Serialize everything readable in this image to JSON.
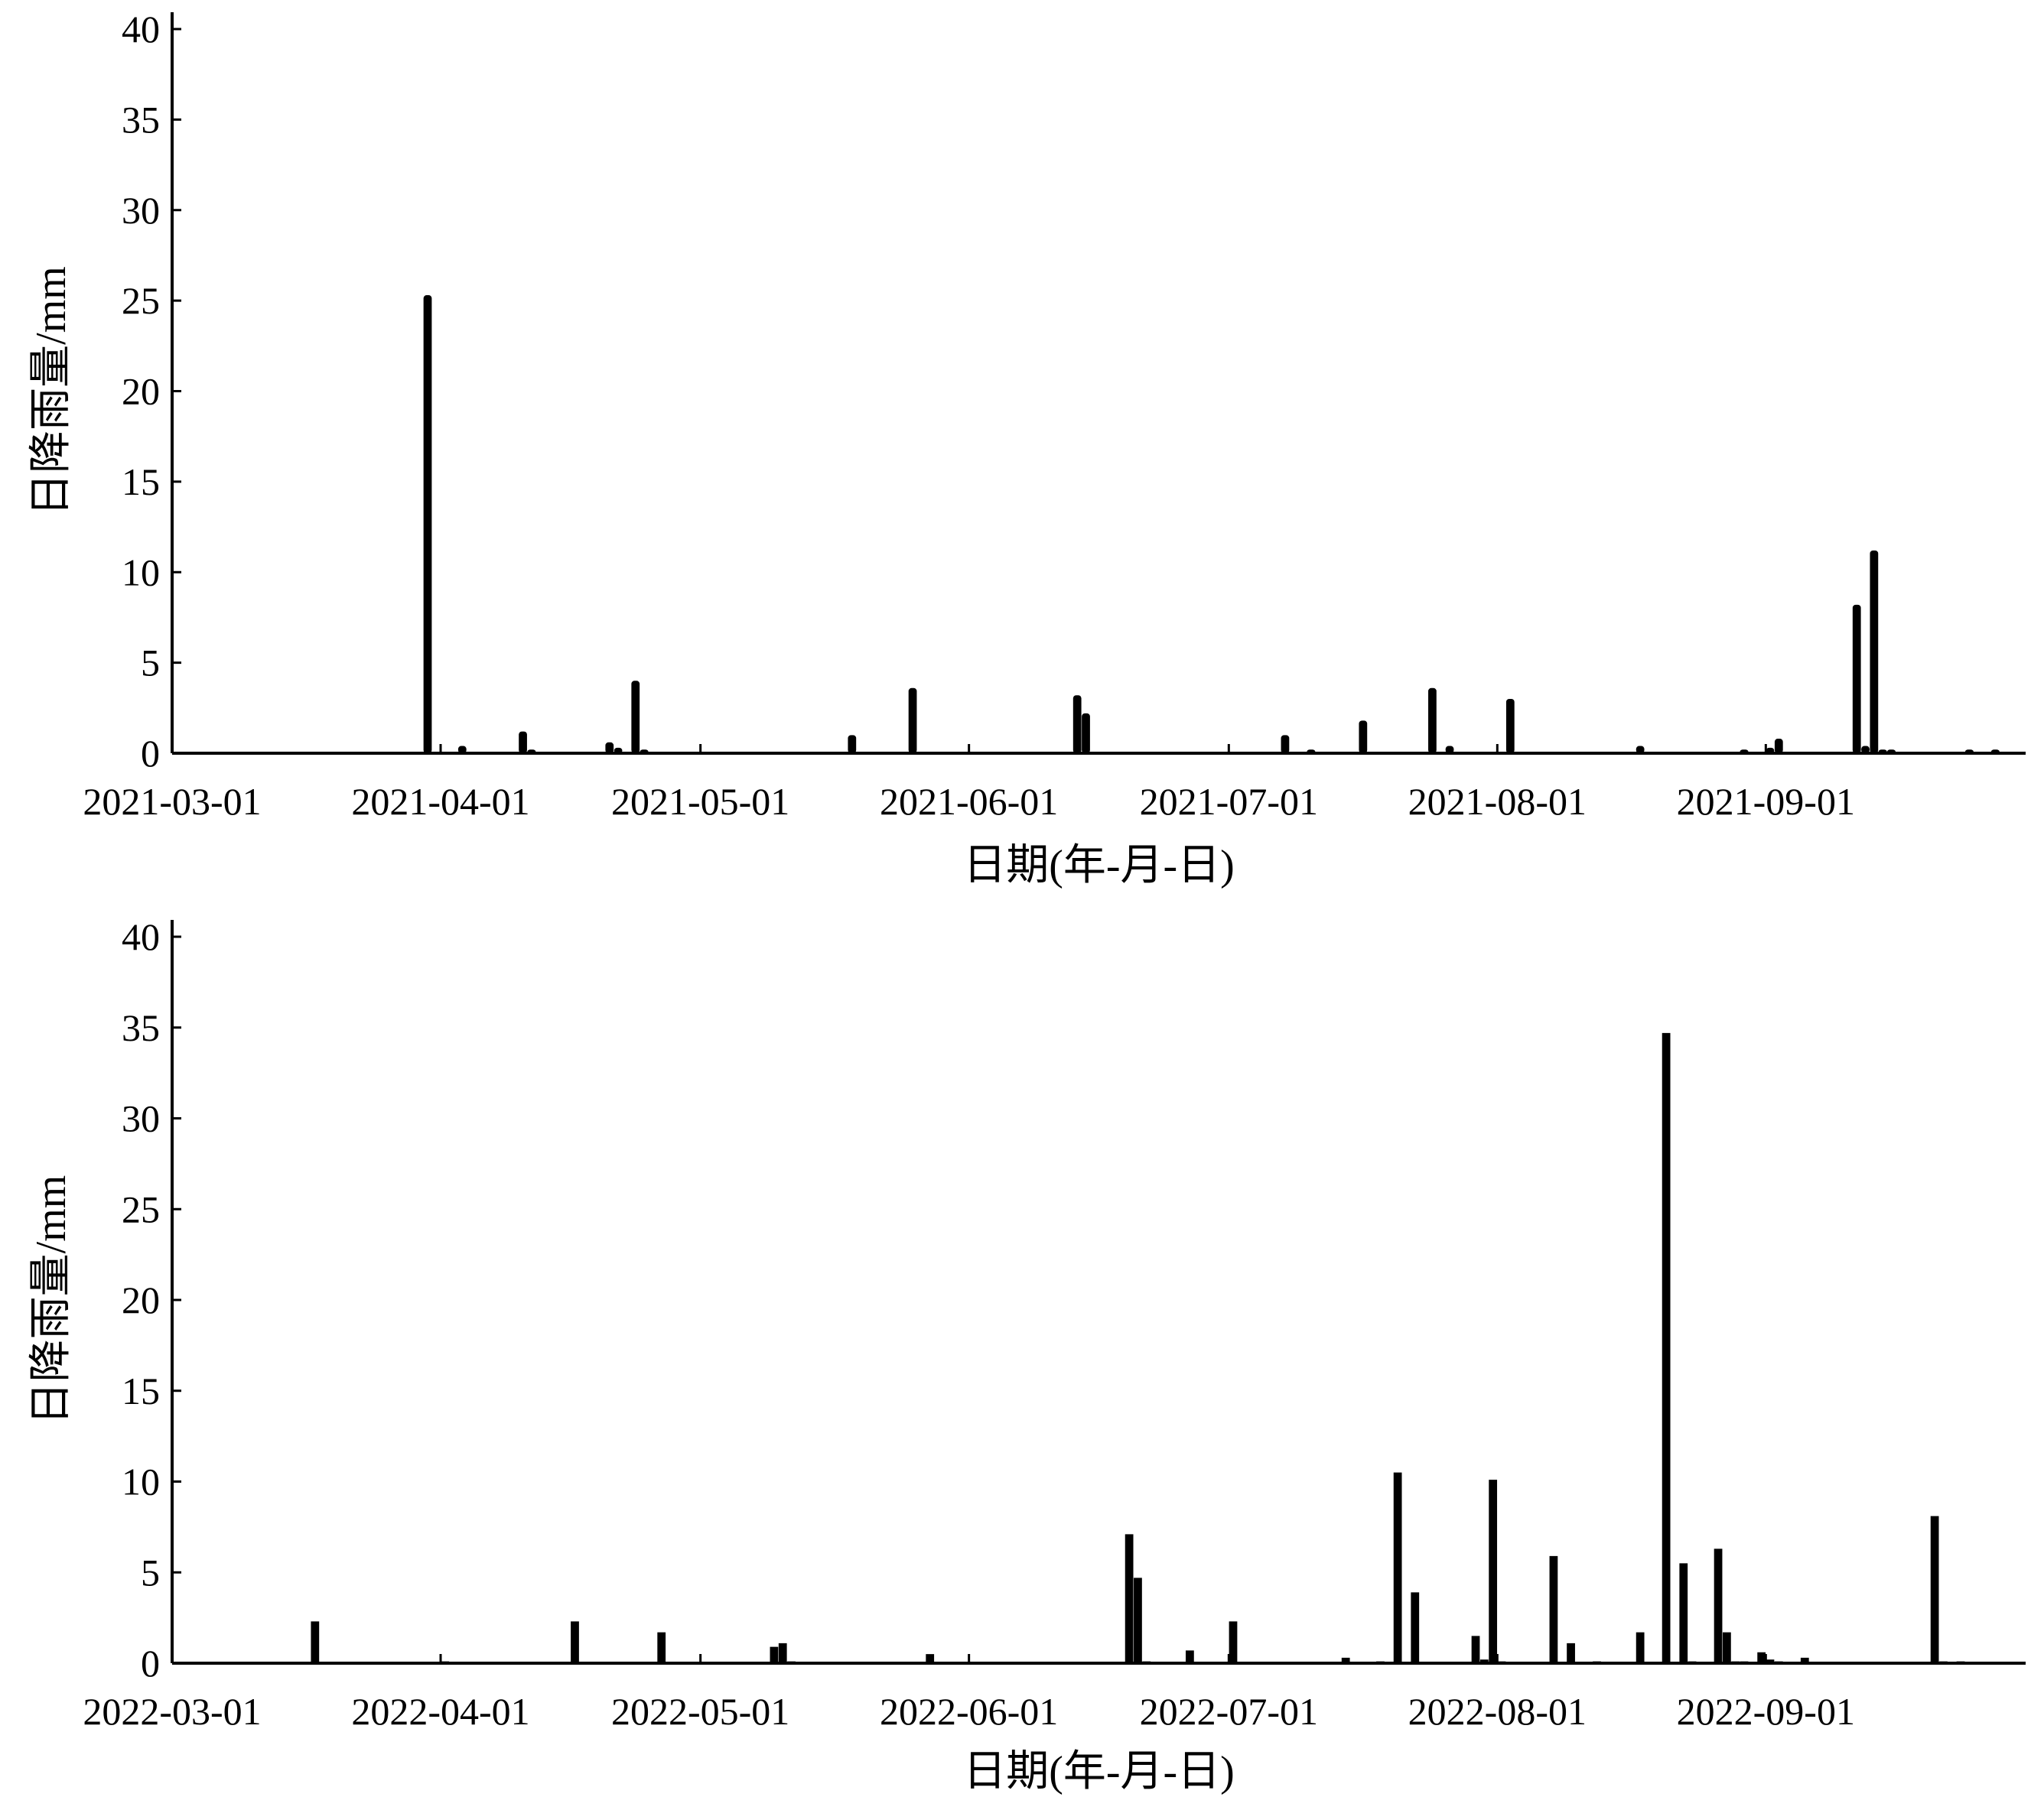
{
  "chart_data": [
    {
      "type": "bar",
      "xlabel": "日期(年-月-日)",
      "ylabel": "日降雨量/mm",
      "ylim": [
        0,
        40
      ],
      "yticks": [
        0,
        5,
        10,
        15,
        20,
        25,
        30,
        35,
        40
      ],
      "xlim": [
        "2021-03-01",
        "2021-09-30"
      ],
      "xticks": [
        "2021-03-01",
        "2021-04-01",
        "2021-05-01",
        "2021-06-01",
        "2021-07-01",
        "2021-08-01",
        "2021-09-01"
      ],
      "bar_color": "#000000",
      "grid": false,
      "points": [
        {
          "x": "2021-03-30",
          "y": 25.3
        },
        {
          "x": "2021-04-03",
          "y": 0.4
        },
        {
          "x": "2021-04-10",
          "y": 1.2
        },
        {
          "x": "2021-04-11",
          "y": 0.2
        },
        {
          "x": "2021-04-20",
          "y": 0.6
        },
        {
          "x": "2021-04-21",
          "y": 0.3
        },
        {
          "x": "2021-04-23",
          "y": 4.0
        },
        {
          "x": "2021-04-24",
          "y": 0.2
        },
        {
          "x": "2021-05-18",
          "y": 1.0
        },
        {
          "x": "2021-05-25",
          "y": 3.6
        },
        {
          "x": "2021-06-13",
          "y": 3.2
        },
        {
          "x": "2021-06-14",
          "y": 2.2
        },
        {
          "x": "2021-07-07",
          "y": 1.0
        },
        {
          "x": "2021-07-10",
          "y": 0.2
        },
        {
          "x": "2021-07-16",
          "y": 1.8
        },
        {
          "x": "2021-07-24",
          "y": 3.6
        },
        {
          "x": "2021-07-26",
          "y": 0.4
        },
        {
          "x": "2021-08-02",
          "y": 3.0
        },
        {
          "x": "2021-08-17",
          "y": 0.4
        },
        {
          "x": "2021-08-29",
          "y": 0.2
        },
        {
          "x": "2021-09-01",
          "y": 0.3
        },
        {
          "x": "2021-09-02",
          "y": 0.8
        },
        {
          "x": "2021-09-11",
          "y": 8.2
        },
        {
          "x": "2021-09-12",
          "y": 0.4
        },
        {
          "x": "2021-09-13",
          "y": 11.2
        },
        {
          "x": "2021-09-14",
          "y": 0.2
        },
        {
          "x": "2021-09-15",
          "y": 0.2
        },
        {
          "x": "2021-09-24",
          "y": 0.2
        },
        {
          "x": "2021-09-27",
          "y": 0.2
        }
      ]
    },
    {
      "type": "bar",
      "xlabel": "日期(年-月-日)",
      "ylabel": "日降雨量/mm",
      "ylim": [
        0,
        40
      ],
      "yticks": [
        0,
        5,
        10,
        15,
        20,
        25,
        30,
        35,
        40
      ],
      "xlim": [
        "2022-03-01",
        "2022-09-30"
      ],
      "xticks": [
        "2022-03-01",
        "2022-04-01",
        "2022-05-01",
        "2022-06-01",
        "2022-07-01",
        "2022-08-01",
        "2022-09-01"
      ],
      "bar_color": "#000000",
      "grid": false,
      "points": [
        {
          "x": "2022-03-17",
          "y": 2.3
        },
        {
          "x": "2022-04-01",
          "y": 0.1
        },
        {
          "x": "2022-04-16",
          "y": 2.3
        },
        {
          "x": "2022-04-26",
          "y": 1.7
        },
        {
          "x": "2022-05-09",
          "y": 0.9
        },
        {
          "x": "2022-05-10",
          "y": 1.1
        },
        {
          "x": "2022-05-11",
          "y": 0.1
        },
        {
          "x": "2022-05-27",
          "y": 0.5
        },
        {
          "x": "2022-06-19",
          "y": 7.1
        },
        {
          "x": "2022-06-20",
          "y": 4.7
        },
        {
          "x": "2022-06-21",
          "y": 0.1
        },
        {
          "x": "2022-06-26",
          "y": 0.7
        },
        {
          "x": "2022-07-01",
          "y": 2.3
        },
        {
          "x": "2022-07-14",
          "y": 0.3
        },
        {
          "x": "2022-07-18",
          "y": 0.1
        },
        {
          "x": "2022-07-20",
          "y": 10.5
        },
        {
          "x": "2022-07-22",
          "y": 3.9
        },
        {
          "x": "2022-07-29",
          "y": 1.5
        },
        {
          "x": "2022-07-30",
          "y": 0.2
        },
        {
          "x": "2022-07-31",
          "y": 10.1
        },
        {
          "x": "2022-08-01",
          "y": 0.1
        },
        {
          "x": "2022-08-07",
          "y": 5.9
        },
        {
          "x": "2022-08-09",
          "y": 1.1
        },
        {
          "x": "2022-08-12",
          "y": 0.1
        },
        {
          "x": "2022-08-17",
          "y": 1.7
        },
        {
          "x": "2022-08-20",
          "y": 34.7
        },
        {
          "x": "2022-08-22",
          "y": 5.5
        },
        {
          "x": "2022-08-23",
          "y": 0.1
        },
        {
          "x": "2022-08-26",
          "y": 6.3
        },
        {
          "x": "2022-08-27",
          "y": 1.7
        },
        {
          "x": "2022-08-28",
          "y": 0.1
        },
        {
          "x": "2022-08-29",
          "y": 0.1
        },
        {
          "x": "2022-08-31",
          "y": 0.6
        },
        {
          "x": "2022-09-01",
          "y": 0.2
        },
        {
          "x": "2022-09-02",
          "y": 0.1
        },
        {
          "x": "2022-09-05",
          "y": 0.3
        },
        {
          "x": "2022-09-20",
          "y": 8.1
        },
        {
          "x": "2022-09-21",
          "y": 0.1
        },
        {
          "x": "2022-09-23",
          "y": 0.1
        }
      ]
    }
  ]
}
